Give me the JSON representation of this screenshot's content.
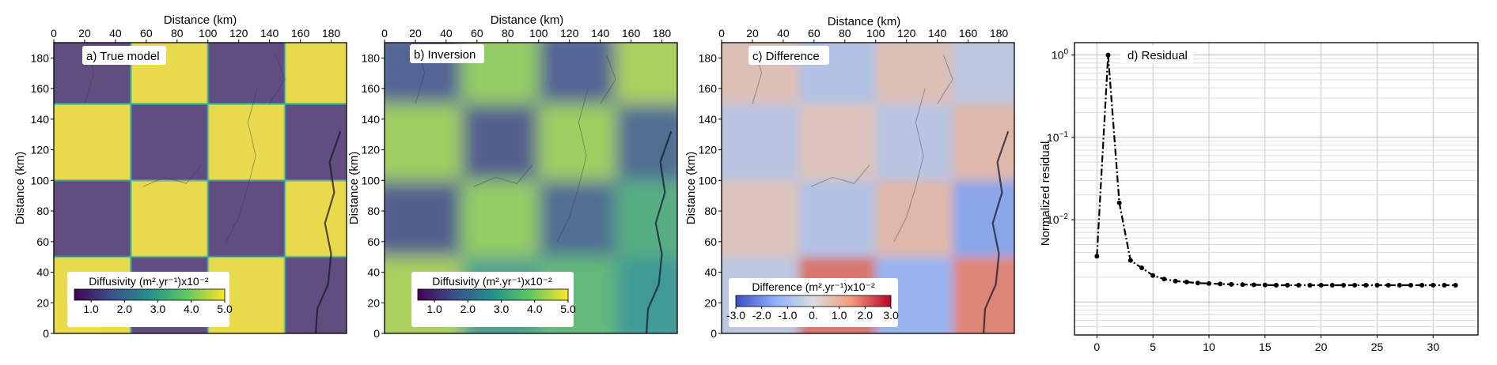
{
  "chart_data": [
    {
      "type": "heatmap",
      "panel_label": "a) True model",
      "xlabel": "Distance (km)",
      "ylabel": "Distance (km)",
      "xlim": [
        0,
        190
      ],
      "ylim": [
        0,
        190
      ],
      "xticks": [
        0,
        20,
        40,
        60,
        80,
        100,
        120,
        140,
        160,
        180
      ],
      "yticks": [
        0,
        20,
        40,
        60,
        80,
        100,
        120,
        140,
        160,
        180
      ],
      "block_edges_km": [
        0,
        50,
        100,
        150,
        190
      ],
      "cell_values_rows_from_top": [
        [
          1.0,
          5.0,
          1.0,
          5.0
        ],
        [
          5.0,
          1.0,
          5.0,
          1.0
        ],
        [
          1.0,
          5.0,
          1.0,
          5.0
        ],
        [
          5.0,
          1.0,
          5.0,
          1.0
        ]
      ],
      "colorbar": {
        "label": "Diffusivity (m².yr⁻¹)x10⁻²",
        "ticks": [
          "1.0",
          "2.0",
          "3.0",
          "4.0",
          "5.0"
        ],
        "range": [
          0.5,
          5.0
        ],
        "colormap": "viridis"
      }
    },
    {
      "type": "heatmap",
      "panel_label": "b) Inversion",
      "xlabel": "Distance (km)",
      "ylabel": "Distance (km)",
      "xlim": [
        0,
        190
      ],
      "ylim": [
        0,
        190
      ],
      "xticks": [
        0,
        20,
        40,
        60,
        80,
        100,
        120,
        140,
        160,
        180
      ],
      "yticks": [
        0,
        20,
        40,
        60,
        80,
        100,
        120,
        140,
        160,
        180
      ],
      "block_edges_km": [
        0,
        50,
        100,
        150,
        190
      ],
      "cell_values_rows_from_top": [
        [
          1.6,
          4.2,
          1.6,
          4.4
        ],
        [
          4.3,
          1.5,
          4.3,
          1.8
        ],
        [
          1.5,
          4.2,
          1.8,
          3.3
        ],
        [
          4.4,
          3.0,
          3.6,
          2.8
        ]
      ],
      "colorbar": {
        "label": "Diffusivity (m².yr⁻¹)x10⁻²",
        "ticks": [
          "1.0",
          "2.0",
          "3.0",
          "4.0",
          "5.0"
        ],
        "range": [
          0.5,
          5.0
        ],
        "colormap": "viridis"
      }
    },
    {
      "type": "heatmap",
      "panel_label": "c) Difference",
      "xlabel": "Distance (km)",
      "ylabel": "Distance (km)",
      "xlim": [
        0,
        190
      ],
      "ylim": [
        0,
        190
      ],
      "xticks": [
        0,
        20,
        40,
        60,
        80,
        100,
        120,
        140,
        160,
        180
      ],
      "yticks": [
        0,
        20,
        40,
        60,
        80,
        100,
        120,
        140,
        160,
        180
      ],
      "block_edges_km": [
        0,
        50,
        100,
        150,
        190
      ],
      "cell_values_rows_from_top": [
        [
          0.6,
          -0.8,
          0.6,
          -0.6
        ],
        [
          -0.7,
          0.5,
          -0.7,
          0.8
        ],
        [
          0.5,
          -0.8,
          0.8,
          -1.7
        ],
        [
          -0.6,
          2.0,
          -1.4,
          1.8
        ]
      ],
      "colorbar": {
        "label": "Difference (m².yr⁻¹)x10⁻²",
        "ticks": [
          "-3.0",
          "-2.0",
          "-1.0",
          "0.",
          "1.0",
          "2.0",
          "3.0"
        ],
        "range": [
          -3.0,
          3.0
        ],
        "colormap": "coolwarm"
      }
    },
    {
      "type": "line",
      "panel_label": "d) Residual",
      "ylabel": "Normalized residual",
      "yscale": "log",
      "xlim": [
        -2,
        34
      ],
      "ylim_log10": [
        -3.4,
        0.15
      ],
      "xticks": [
        "0",
        "5",
        "10",
        "15",
        "20",
        "25",
        "30"
      ],
      "yticks": [
        {
          "mantissa": "10",
          "exponent": "0",
          "log10": 0
        },
        {
          "mantissa": "10",
          "exponent": "−1",
          "log10": -1
        },
        {
          "mantissa": "10",
          "exponent": "−2",
          "log10": -2
        }
      ],
      "grid": true,
      "x": [
        0,
        1,
        2,
        3,
        4,
        5,
        6,
        7,
        8,
        9,
        10,
        11,
        12,
        13,
        14,
        15,
        16,
        17,
        18,
        19,
        20,
        21,
        22,
        23,
        24,
        25,
        26,
        27,
        28,
        29,
        30,
        31,
        32
      ],
      "y": [
        0.0036,
        1.0,
        0.016,
        0.0032,
        0.0026,
        0.0021,
        0.0019,
        0.0018,
        0.00175,
        0.0017,
        0.00168,
        0.00166,
        0.00164,
        0.00163,
        0.00162,
        0.00161,
        0.0016,
        0.0016,
        0.0016,
        0.0016,
        0.0016,
        0.0016,
        0.0016,
        0.0016,
        0.0016,
        0.0016,
        0.0016,
        0.0016,
        0.0016,
        0.0016,
        0.0016,
        0.0016,
        0.0016
      ]
    }
  ]
}
